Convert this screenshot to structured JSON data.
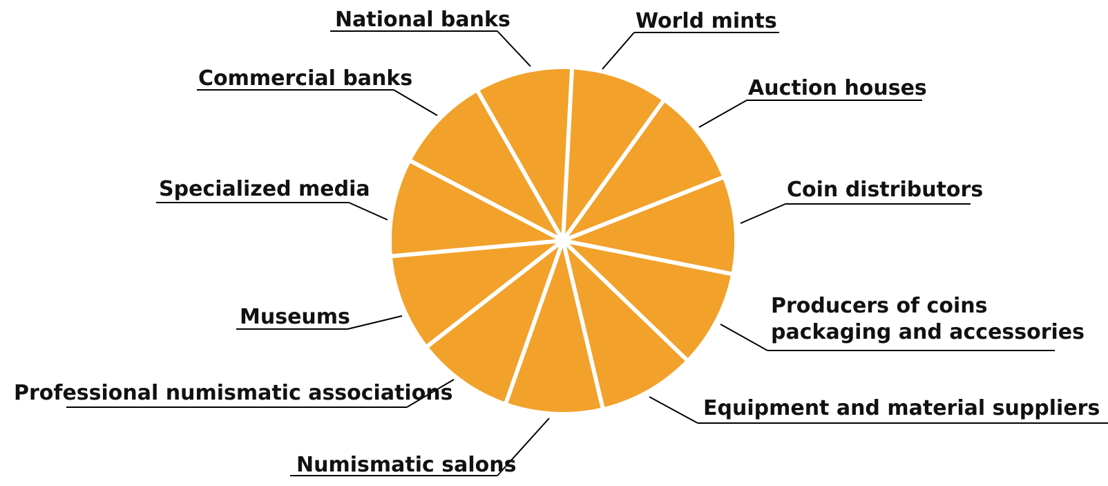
{
  "diagram": {
    "slice_color": "#F2A12B",
    "line_color": "#000000",
    "text_color": "#111111",
    "segments": [
      {
        "label_lines": [
          "World mints"
        ],
        "share": 1
      },
      {
        "label_lines": [
          "Auction houses"
        ],
        "share": 1
      },
      {
        "label_lines": [
          "Coin distributors"
        ],
        "share": 1
      },
      {
        "label_lines": [
          "Producers of coins",
          "packaging and accessories"
        ],
        "share": 1
      },
      {
        "label_lines": [
          "Equipment and material suppliers"
        ],
        "share": 1
      },
      {
        "label_lines": [
          "Numismatic salons"
        ],
        "share": 1
      },
      {
        "label_lines": [
          "Professional numismatic associations"
        ],
        "share": 1
      },
      {
        "label_lines": [
          "Museums"
        ],
        "share": 1
      },
      {
        "label_lines": [
          "Specialized media"
        ],
        "share": 1
      },
      {
        "label_lines": [
          "Commercial banks"
        ],
        "share": 1
      },
      {
        "label_lines": [
          "National banks"
        ],
        "share": 1
      }
    ]
  }
}
